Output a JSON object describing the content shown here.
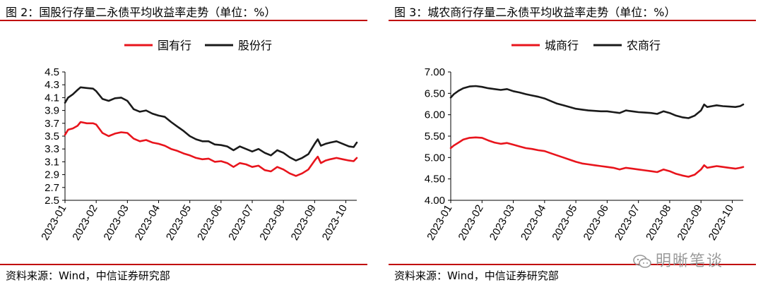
{
  "panels": [
    {
      "title": "图 2：国股行存量二永债平均收益率走势（单位：%）",
      "source": "资料来源：Wind，中信证券研究部"
    },
    {
      "title": "图 3：城农商行存量二永债平均收益率走势（单位：%）",
      "source": "资料来源：Wind，中信证券研究部"
    }
  ],
  "watermark": {
    "text": "明晰笔谈",
    "icon": "wechat-icon"
  },
  "chart_data": [
    {
      "type": "line",
      "title": "",
      "xlabel": "",
      "ylabel": "",
      "ylim": [
        2.5,
        4.5
      ],
      "yticks": [
        "4.5",
        "4.3",
        "4.1",
        "3.9",
        "3.7",
        "3.5",
        "3.3",
        "3.1",
        "2.9",
        "2.7",
        "2.5"
      ],
      "yticks_values": [
        4.5,
        4.3,
        4.1,
        3.9,
        3.7,
        3.5,
        3.3,
        3.1,
        2.9,
        2.7,
        2.5
      ],
      "xticks": [
        "2023-01",
        "2023-02",
        "2023-03",
        "2023-04",
        "2023-05",
        "2023-06",
        "2023-07",
        "2023-08",
        "2023-09",
        "2023-10"
      ],
      "xticks_values": [
        0,
        1,
        2,
        3,
        4,
        5,
        6,
        7,
        8,
        9
      ],
      "xlim": [
        0,
        9.35
      ],
      "legend_position": "top-center",
      "grid": false,
      "series": [
        {
          "name": "国有行",
          "color": "#e8141c",
          "x": [
            0,
            0.1,
            0.25,
            0.4,
            0.5,
            0.7,
            0.9,
            1.0,
            1.2,
            1.4,
            1.6,
            1.8,
            2.0,
            2.2,
            2.4,
            2.6,
            2.8,
            3.0,
            3.2,
            3.4,
            3.6,
            3.8,
            4.0,
            4.2,
            4.4,
            4.6,
            4.8,
            5.0,
            5.2,
            5.4,
            5.6,
            5.8,
            6.0,
            6.2,
            6.4,
            6.6,
            6.8,
            7.0,
            7.2,
            7.4,
            7.6,
            7.8,
            8.0,
            8.1,
            8.2,
            8.35,
            8.5,
            8.7,
            8.9,
            9.1,
            9.25,
            9.35
          ],
          "values": [
            3.52,
            3.6,
            3.62,
            3.66,
            3.72,
            3.7,
            3.7,
            3.68,
            3.55,
            3.5,
            3.54,
            3.56,
            3.55,
            3.46,
            3.42,
            3.44,
            3.4,
            3.38,
            3.35,
            3.3,
            3.27,
            3.23,
            3.2,
            3.16,
            3.14,
            3.15,
            3.1,
            3.11,
            3.08,
            3.02,
            3.08,
            3.06,
            3.02,
            3.04,
            2.97,
            2.95,
            3.02,
            2.98,
            2.92,
            2.88,
            2.92,
            2.98,
            3.12,
            3.18,
            3.08,
            3.12,
            3.14,
            3.16,
            3.14,
            3.12,
            3.11,
            3.16
          ]
        },
        {
          "name": "股份行",
          "color": "#1a1a1a",
          "x": [
            0,
            0.1,
            0.25,
            0.4,
            0.5,
            0.7,
            0.9,
            1.0,
            1.2,
            1.4,
            1.6,
            1.8,
            2.0,
            2.2,
            2.4,
            2.6,
            2.8,
            3.0,
            3.2,
            3.4,
            3.6,
            3.8,
            4.0,
            4.2,
            4.4,
            4.6,
            4.8,
            5.0,
            5.2,
            5.4,
            5.6,
            5.8,
            6.0,
            6.2,
            6.4,
            6.6,
            6.8,
            7.0,
            7.2,
            7.4,
            7.6,
            7.8,
            8.0,
            8.1,
            8.2,
            8.35,
            8.5,
            8.7,
            8.9,
            9.1,
            9.25,
            9.35
          ],
          "values": [
            4.02,
            4.1,
            4.15,
            4.22,
            4.26,
            4.25,
            4.24,
            4.2,
            4.08,
            4.05,
            4.09,
            4.1,
            4.05,
            3.92,
            3.88,
            3.9,
            3.85,
            3.82,
            3.8,
            3.72,
            3.65,
            3.58,
            3.5,
            3.45,
            3.42,
            3.42,
            3.37,
            3.36,
            3.34,
            3.28,
            3.34,
            3.3,
            3.26,
            3.3,
            3.24,
            3.2,
            3.28,
            3.24,
            3.17,
            3.12,
            3.16,
            3.22,
            3.38,
            3.45,
            3.35,
            3.38,
            3.4,
            3.42,
            3.38,
            3.34,
            3.33,
            3.4
          ]
        }
      ]
    },
    {
      "type": "line",
      "title": "",
      "xlabel": "",
      "ylabel": "",
      "ylim": [
        4.0,
        7.0
      ],
      "yticks": [
        "7.00",
        "6.50",
        "6.00",
        "5.50",
        "5.00",
        "4.50",
        "4.00"
      ],
      "yticks_values": [
        7.0,
        6.5,
        6.0,
        5.5,
        5.0,
        4.5,
        4.0
      ],
      "xticks": [
        "2023-01",
        "2023-02",
        "2023-03",
        "2023-04",
        "2023-05",
        "2023-06",
        "2023-07",
        "2023-08",
        "2023-09",
        "2023-10"
      ],
      "xticks_values": [
        0,
        1,
        2,
        3,
        4,
        5,
        6,
        7,
        8,
        9
      ],
      "xlim": [
        0,
        9.35
      ],
      "legend_position": "top-center",
      "grid": false,
      "series": [
        {
          "name": "城商行",
          "color": "#e8141c",
          "x": [
            0,
            0.1,
            0.25,
            0.4,
            0.6,
            0.8,
            1.0,
            1.2,
            1.4,
            1.6,
            1.8,
            2.0,
            2.2,
            2.4,
            2.6,
            2.8,
            3.0,
            3.2,
            3.4,
            3.6,
            3.8,
            4.0,
            4.2,
            4.4,
            4.6,
            4.8,
            5.0,
            5.2,
            5.4,
            5.6,
            5.8,
            6.0,
            6.2,
            6.4,
            6.6,
            6.8,
            7.0,
            7.2,
            7.4,
            7.6,
            7.8,
            8.0,
            8.1,
            8.2,
            8.35,
            8.5,
            8.7,
            8.9,
            9.1,
            9.25,
            9.35
          ],
          "values": [
            5.22,
            5.28,
            5.35,
            5.42,
            5.46,
            5.47,
            5.46,
            5.4,
            5.35,
            5.32,
            5.34,
            5.3,
            5.26,
            5.22,
            5.2,
            5.17,
            5.15,
            5.1,
            5.05,
            5.0,
            4.95,
            4.9,
            4.86,
            4.84,
            4.82,
            4.8,
            4.78,
            4.76,
            4.72,
            4.76,
            4.74,
            4.72,
            4.7,
            4.68,
            4.66,
            4.72,
            4.68,
            4.62,
            4.58,
            4.55,
            4.6,
            4.72,
            4.82,
            4.76,
            4.78,
            4.8,
            4.78,
            4.76,
            4.74,
            4.76,
            4.78
          ]
        },
        {
          "name": "农商行",
          "color": "#1a1a1a",
          "x": [
            0,
            0.1,
            0.25,
            0.4,
            0.6,
            0.8,
            1.0,
            1.2,
            1.4,
            1.6,
            1.8,
            2.0,
            2.2,
            2.4,
            2.6,
            2.8,
            3.0,
            3.2,
            3.4,
            3.6,
            3.8,
            4.0,
            4.2,
            4.4,
            4.6,
            4.8,
            5.0,
            5.2,
            5.4,
            5.6,
            5.8,
            6.0,
            6.2,
            6.4,
            6.6,
            6.8,
            7.0,
            7.2,
            7.4,
            7.6,
            7.8,
            8.0,
            8.1,
            8.2,
            8.35,
            8.5,
            8.7,
            8.9,
            9.1,
            9.25,
            9.35
          ],
          "values": [
            6.4,
            6.48,
            6.56,
            6.62,
            6.66,
            6.67,
            6.65,
            6.62,
            6.6,
            6.58,
            6.6,
            6.55,
            6.52,
            6.48,
            6.45,
            6.42,
            6.38,
            6.32,
            6.26,
            6.22,
            6.18,
            6.14,
            6.12,
            6.1,
            6.09,
            6.08,
            6.08,
            6.06,
            6.04,
            6.1,
            6.08,
            6.06,
            6.05,
            6.04,
            6.02,
            6.08,
            6.04,
            5.98,
            5.94,
            5.92,
            5.98,
            6.1,
            6.24,
            6.18,
            6.2,
            6.22,
            6.2,
            6.19,
            6.18,
            6.2,
            6.24
          ]
        }
      ]
    }
  ]
}
